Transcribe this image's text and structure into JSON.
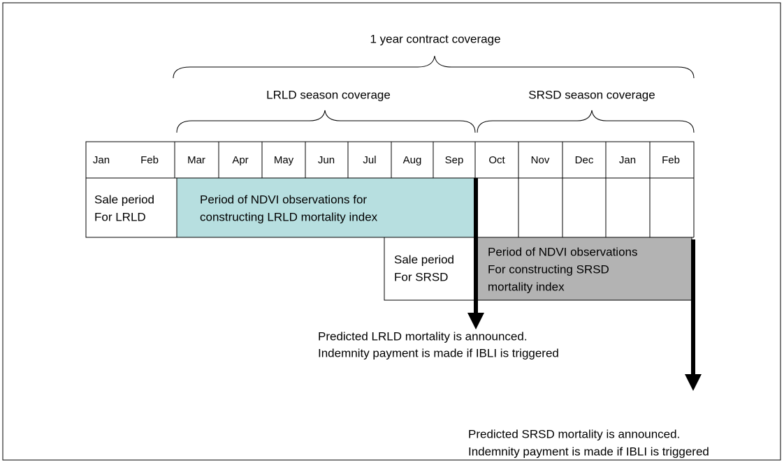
{
  "title": "1 year contract coverage",
  "seasons": [
    {
      "label": "LRLD season coverage"
    },
    {
      "label": "SRSD season coverage"
    }
  ],
  "months": [
    "Jan",
    "Feb",
    "Mar",
    "Apr",
    "May",
    "Jun",
    "Jul",
    "Aug",
    "Sep",
    "Oct",
    "Nov",
    "Dec",
    "Jan",
    "Feb"
  ],
  "boxes": [
    {
      "lines": [
        "Sale period",
        "For LRLD"
      ]
    },
    {
      "lines": [
        "Period of NDVI observations for",
        "constructing LRLD mortality index"
      ]
    },
    {
      "lines": [
        "Sale period",
        "For SRSD"
      ]
    },
    {
      "lines": [
        "Period of NDVI observations",
        "For constructing SRSD",
        "mortality index"
      ]
    }
  ],
  "notes": [
    {
      "lines": [
        "Predicted LRLD mortality is announced.",
        "Indemnity payment is made if IBLI is triggered"
      ]
    },
    {
      "lines": [
        "Predicted SRSD mortality is announced.",
        "Indemnity payment is made if IBLI is triggered"
      ]
    }
  ]
}
